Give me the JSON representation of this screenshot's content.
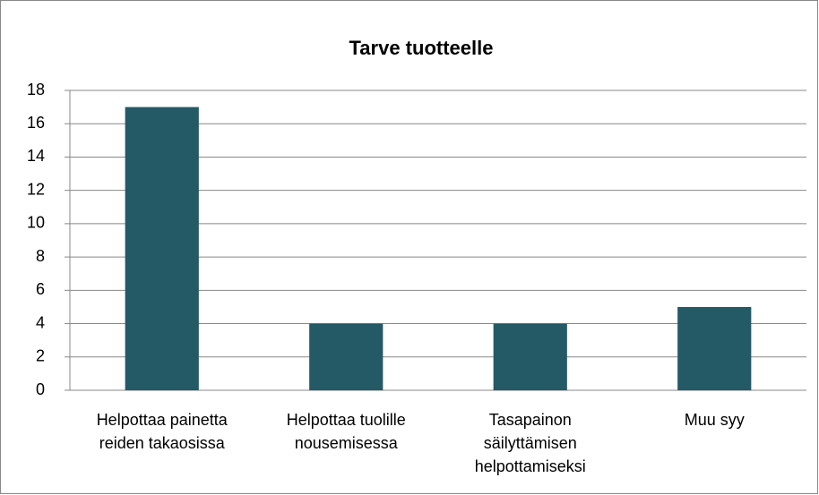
{
  "chart_data": {
    "type": "bar",
    "title": "Tarve tuotteelle",
    "categories": [
      "Helpottaa painetta reiden takaosissa",
      "Helpottaa tuolille nousemisessa",
      "Tasapainon säilyttämisen helpottamiseksi",
      "Muu syy"
    ],
    "values": [
      17,
      4,
      4,
      5
    ],
    "color": "#245966",
    "ylim": [
      0,
      18
    ],
    "yticks": [
      0,
      2,
      4,
      6,
      8,
      10,
      12,
      14,
      16,
      18
    ],
    "grid": true
  }
}
